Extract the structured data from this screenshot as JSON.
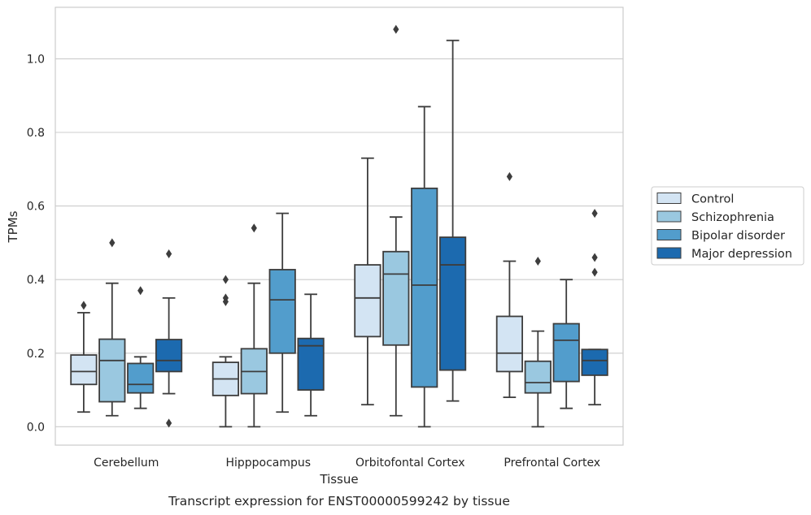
{
  "chart_data": {
    "type": "box",
    "caption": "Transcript expression for ENST00000599242 by tissue",
    "xlabel": "Tissue",
    "ylabel": "TPMs",
    "ylim": [
      -0.05,
      1.14
    ],
    "yticks": [
      "0.0",
      "0.2",
      "0.4",
      "0.6",
      "0.8",
      "1.0"
    ],
    "grid": true,
    "legend_position": "right",
    "categories": [
      "Cerebellum",
      "Hipppocampus",
      "Orbitofontal Cortex",
      "Prefrontal Cortex"
    ],
    "series": [
      {
        "name": "Control",
        "color": "#d3e4f3",
        "boxes": [
          {
            "whisker_low": 0.04,
            "q1": 0.115,
            "median": 0.15,
            "q3": 0.195,
            "whisker_high": 0.31,
            "outliers": [
              0.33
            ]
          },
          {
            "whisker_low": 0.0,
            "q1": 0.085,
            "median": 0.13,
            "q3": 0.175,
            "whisker_high": 0.19,
            "outliers": [
              0.34,
              0.35,
              0.4
            ]
          },
          {
            "whisker_low": 0.06,
            "q1": 0.245,
            "median": 0.35,
            "q3": 0.44,
            "whisker_high": 0.73,
            "outliers": []
          },
          {
            "whisker_low": 0.08,
            "q1": 0.15,
            "median": 0.2,
            "q3": 0.3,
            "whisker_high": 0.45,
            "outliers": [
              0.68
            ]
          }
        ]
      },
      {
        "name": "Schizophrenia",
        "color": "#9ac8e0",
        "boxes": [
          {
            "whisker_low": 0.03,
            "q1": 0.068,
            "median": 0.18,
            "q3": 0.238,
            "whisker_high": 0.39,
            "outliers": [
              0.5
            ]
          },
          {
            "whisker_low": 0.0,
            "q1": 0.09,
            "median": 0.15,
            "q3": 0.212,
            "whisker_high": 0.39,
            "outliers": [
              0.54
            ]
          },
          {
            "whisker_low": 0.03,
            "q1": 0.222,
            "median": 0.415,
            "q3": 0.476,
            "whisker_high": 0.57,
            "outliers": [
              1.08
            ]
          },
          {
            "whisker_low": 0.0,
            "q1": 0.092,
            "median": 0.12,
            "q3": 0.178,
            "whisker_high": 0.26,
            "outliers": [
              0.45
            ]
          }
        ]
      },
      {
        "name": "Bipolar disorder",
        "color": "#529dcc",
        "boxes": [
          {
            "whisker_low": 0.05,
            "q1": 0.092,
            "median": 0.115,
            "q3": 0.172,
            "whisker_high": 0.19,
            "outliers": [
              0.37
            ]
          },
          {
            "whisker_low": 0.04,
            "q1": 0.2,
            "median": 0.345,
            "q3": 0.427,
            "whisker_high": 0.58,
            "outliers": []
          },
          {
            "whisker_low": 0.0,
            "q1": 0.108,
            "median": 0.385,
            "q3": 0.648,
            "whisker_high": 0.87,
            "outliers": []
          },
          {
            "whisker_low": 0.05,
            "q1": 0.123,
            "median": 0.235,
            "q3": 0.28,
            "whisker_high": 0.4,
            "outliers": []
          }
        ]
      },
      {
        "name": "Major depression",
        "color": "#1c6aaf",
        "boxes": [
          {
            "whisker_low": 0.09,
            "q1": 0.15,
            "median": 0.18,
            "q3": 0.237,
            "whisker_high": 0.35,
            "outliers": [
              0.01,
              0.47
            ]
          },
          {
            "whisker_low": 0.03,
            "q1": 0.1,
            "median": 0.22,
            "q3": 0.24,
            "whisker_high": 0.36,
            "outliers": []
          },
          {
            "whisker_low": 0.07,
            "q1": 0.154,
            "median": 0.44,
            "q3": 0.515,
            "whisker_high": 1.05,
            "outliers": []
          },
          {
            "whisker_low": 0.06,
            "q1": 0.14,
            "median": 0.18,
            "q3": 0.21,
            "whisker_high": 0.21,
            "outliers": [
              0.42,
              0.46,
              0.58
            ]
          }
        ]
      }
    ]
  }
}
